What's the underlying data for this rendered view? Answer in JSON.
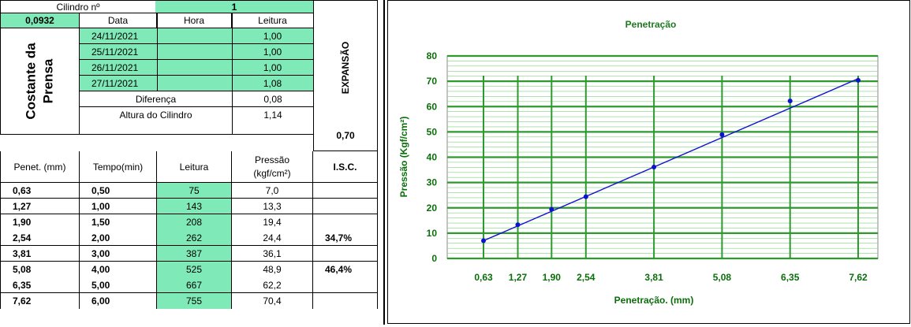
{
  "table": {
    "cilindro_label": "Cilindro nº",
    "cilindro_value": "1",
    "constante_value": "0,0932",
    "constante_label_1": "Costante   da",
    "constante_label_2": "Prensa",
    "col_data": "Data",
    "col_hora": "Hora",
    "col_leitura": "Leitura",
    "expansao_label": "EXPANSÃO",
    "readings": [
      {
        "data": "24/11/2021",
        "hora": "",
        "leitura": "1,00"
      },
      {
        "data": "25/11/2021",
        "hora": "",
        "leitura": "1,00"
      },
      {
        "data": "26/11/2021",
        "hora": "",
        "leitura": "1,00"
      },
      {
        "data": "27/11/2021",
        "hora": "",
        "leitura": "1,08"
      }
    ],
    "diferenca_label": "Diferença",
    "diferenca_value": "0,08",
    "altura_label": "Altura do Cilindro",
    "altura_value": "1,14",
    "expansao_value": "0,70",
    "pen_headers": {
      "penet": "Penet. (mm)",
      "tempo": "Tempo(min)",
      "leitura": "Leitura",
      "pressao_1": "Pressão",
      "pressao_2": "(kgf/cm²)",
      "isc": "I.S.C."
    },
    "pen_rows": [
      {
        "penet": "0,63",
        "tempo": "0,50",
        "leitura": "75",
        "pressao": "7,0",
        "isc": ""
      },
      {
        "penet": "1,27",
        "tempo": "1,00",
        "leitura": "143",
        "pressao": "13,3",
        "isc": ""
      },
      {
        "penet": "1,90",
        "tempo": "1,50",
        "leitura": "208",
        "pressao": "19,4",
        "isc": ""
      },
      {
        "penet": "2,54",
        "tempo": "2,00",
        "leitura": "262",
        "pressao": "24,4",
        "isc": "34,7%"
      },
      {
        "penet": "3,81",
        "tempo": "3,00",
        "leitura": "387",
        "pressao": "36,1",
        "isc": ""
      },
      {
        "penet": "5,08",
        "tempo": "4,00",
        "leitura": "525",
        "pressao": "48,9",
        "isc": "46,4%"
      },
      {
        "penet": "6,35",
        "tempo": "5,00",
        "leitura": "667",
        "pressao": "62,2",
        "isc": ""
      },
      {
        "penet": "7,62",
        "tempo": "6,00",
        "leitura": "755",
        "pressao": "70,4",
        "isc": ""
      }
    ]
  },
  "colors": {
    "cell_green": "#7fe9b8",
    "chart_title": "#1f7a1f",
    "grid_major": "#2e9a2e",
    "grid_minor": "#7fd27f",
    "series": "#1010d0",
    "axis_text": "#0a6e0a"
  },
  "chart_data": {
    "type": "line",
    "title": "Penetração",
    "xlabel": "Penetração. (mm)",
    "ylabel": "Pressão (Kgf/cm²)",
    "x_ticks": [
      "0,63",
      "1,27",
      "1,90",
      "2,54",
      "3,81",
      "5,08",
      "6,35",
      "7,62"
    ],
    "y_ticks": [
      "0",
      "10",
      "20",
      "30",
      "40",
      "50",
      "60",
      "70",
      "80"
    ],
    "ylim": [
      0,
      80
    ],
    "series": [
      {
        "type": "scatter",
        "x": [
          0.63,
          1.27,
          1.9,
          2.54,
          3.81,
          5.08,
          6.35,
          7.62
        ],
        "values": [
          7.0,
          13.3,
          19.4,
          24.4,
          36.1,
          48.9,
          62.2,
          70.4
        ]
      },
      {
        "type": "line",
        "x": [
          0.63,
          7.62
        ],
        "values": [
          7.0,
          71.0
        ]
      }
    ],
    "grid": true,
    "legend": "none"
  }
}
